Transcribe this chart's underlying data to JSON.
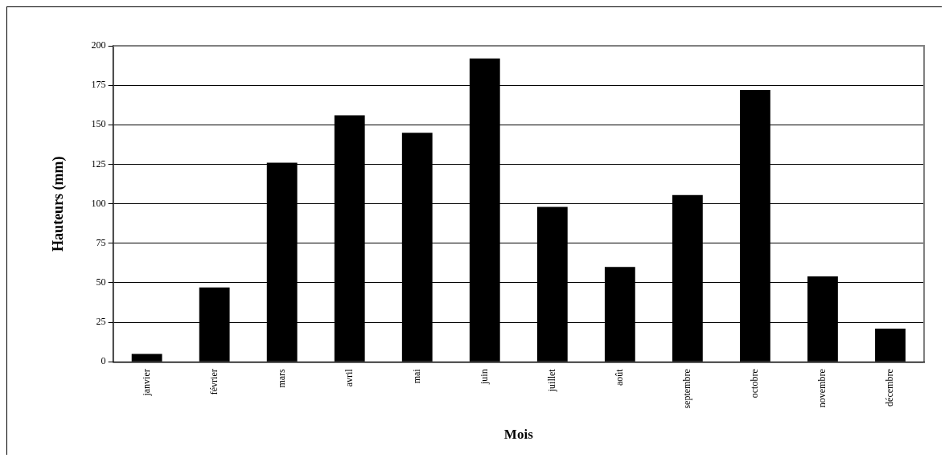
{
  "chart_data": {
    "type": "bar",
    "xlabel": "Mois",
    "ylabel": "Hauteurs (mm)",
    "categories": [
      "janvier",
      "février",
      "mars",
      "avril",
      "mai",
      "juin",
      "juillet",
      "août",
      "septembre",
      "octobre",
      "novembre",
      "décembre"
    ],
    "values": [
      5,
      47,
      126,
      156,
      145,
      192,
      98,
      60,
      105.5,
      172,
      54,
      21
    ],
    "color": "#000000",
    "ylim": [
      0,
      200
    ],
    "yticks": [
      0,
      25,
      50,
      75,
      100,
      125,
      150,
      175,
      200
    ],
    "grid": "y",
    "legend": false
  }
}
